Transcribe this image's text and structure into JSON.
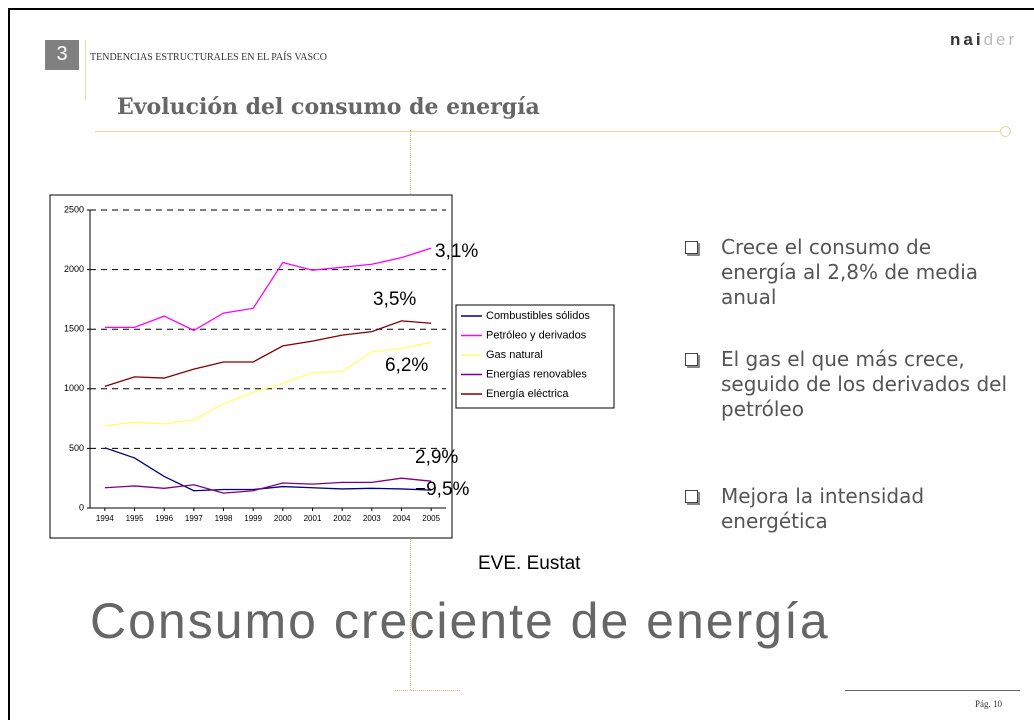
{
  "section_number": "3",
  "section": "TENDENCIAS ESTRUCTURALES EN EL PAÍS VASCO",
  "logo": {
    "dark": "nai",
    "light": "der"
  },
  "heading": "Evolución del consumo de energía",
  "chart_data": {
    "type": "line",
    "x": [
      1994,
      1995,
      1996,
      1997,
      1998,
      1999,
      2000,
      2001,
      2002,
      2003,
      2004,
      2005
    ],
    "xlim": [
      1993.5,
      2005.5
    ],
    "xticks": [
      1994,
      1995,
      1996,
      1997,
      1998,
      1999,
      2000,
      2001,
      2002,
      2003,
      2004,
      2005
    ],
    "ylim": [
      0,
      2500
    ],
    "yticks": [
      0,
      500,
      1000,
      1500,
      2000,
      2500
    ],
    "grid": true,
    "legend": "right",
    "series": [
      {
        "name": "Combustibles sólidos",
        "color": "#000080",
        "values": [
          505,
          420,
          265,
          145,
          155,
          155,
          180,
          170,
          160,
          165,
          160,
          150
        ]
      },
      {
        "name": "Petróleo y derivados",
        "color": "#ff00ff",
        "values": [
          1515,
          1515,
          1610,
          1490,
          1635,
          1675,
          2060,
          1995,
          2020,
          2045,
          2100,
          2180
        ]
      },
      {
        "name": "Gas natural",
        "color": "#ffff66",
        "values": [
          690,
          720,
          705,
          740,
          875,
          970,
          1045,
          1135,
          1145,
          1310,
          1340,
          1390
        ]
      },
      {
        "name": "Energías renovables",
        "color": "#800080",
        "values": [
          170,
          185,
          165,
          195,
          125,
          145,
          210,
          200,
          215,
          215,
          250,
          225
        ]
      },
      {
        "name": "Energía eléctrica",
        "color": "#800000",
        "values": [
          1020,
          1100,
          1090,
          1165,
          1225,
          1225,
          1360,
          1400,
          1450,
          1480,
          1570,
          1550
        ]
      }
    ],
    "annotations": [
      "3,1%",
      "3,5%",
      "6,2%",
      "2,9%",
      "−9,5%"
    ],
    "source": "EVE. Eustat"
  },
  "bullets": [
    "Crece el consumo de energía al 2,8% de media anual",
    "El gas el que más crece, seguido de los derivados del petróleo",
    "Mejora la intensidad energética"
  ],
  "slide_title": "Consumo creciente de energía",
  "page": "Pág. 10"
}
